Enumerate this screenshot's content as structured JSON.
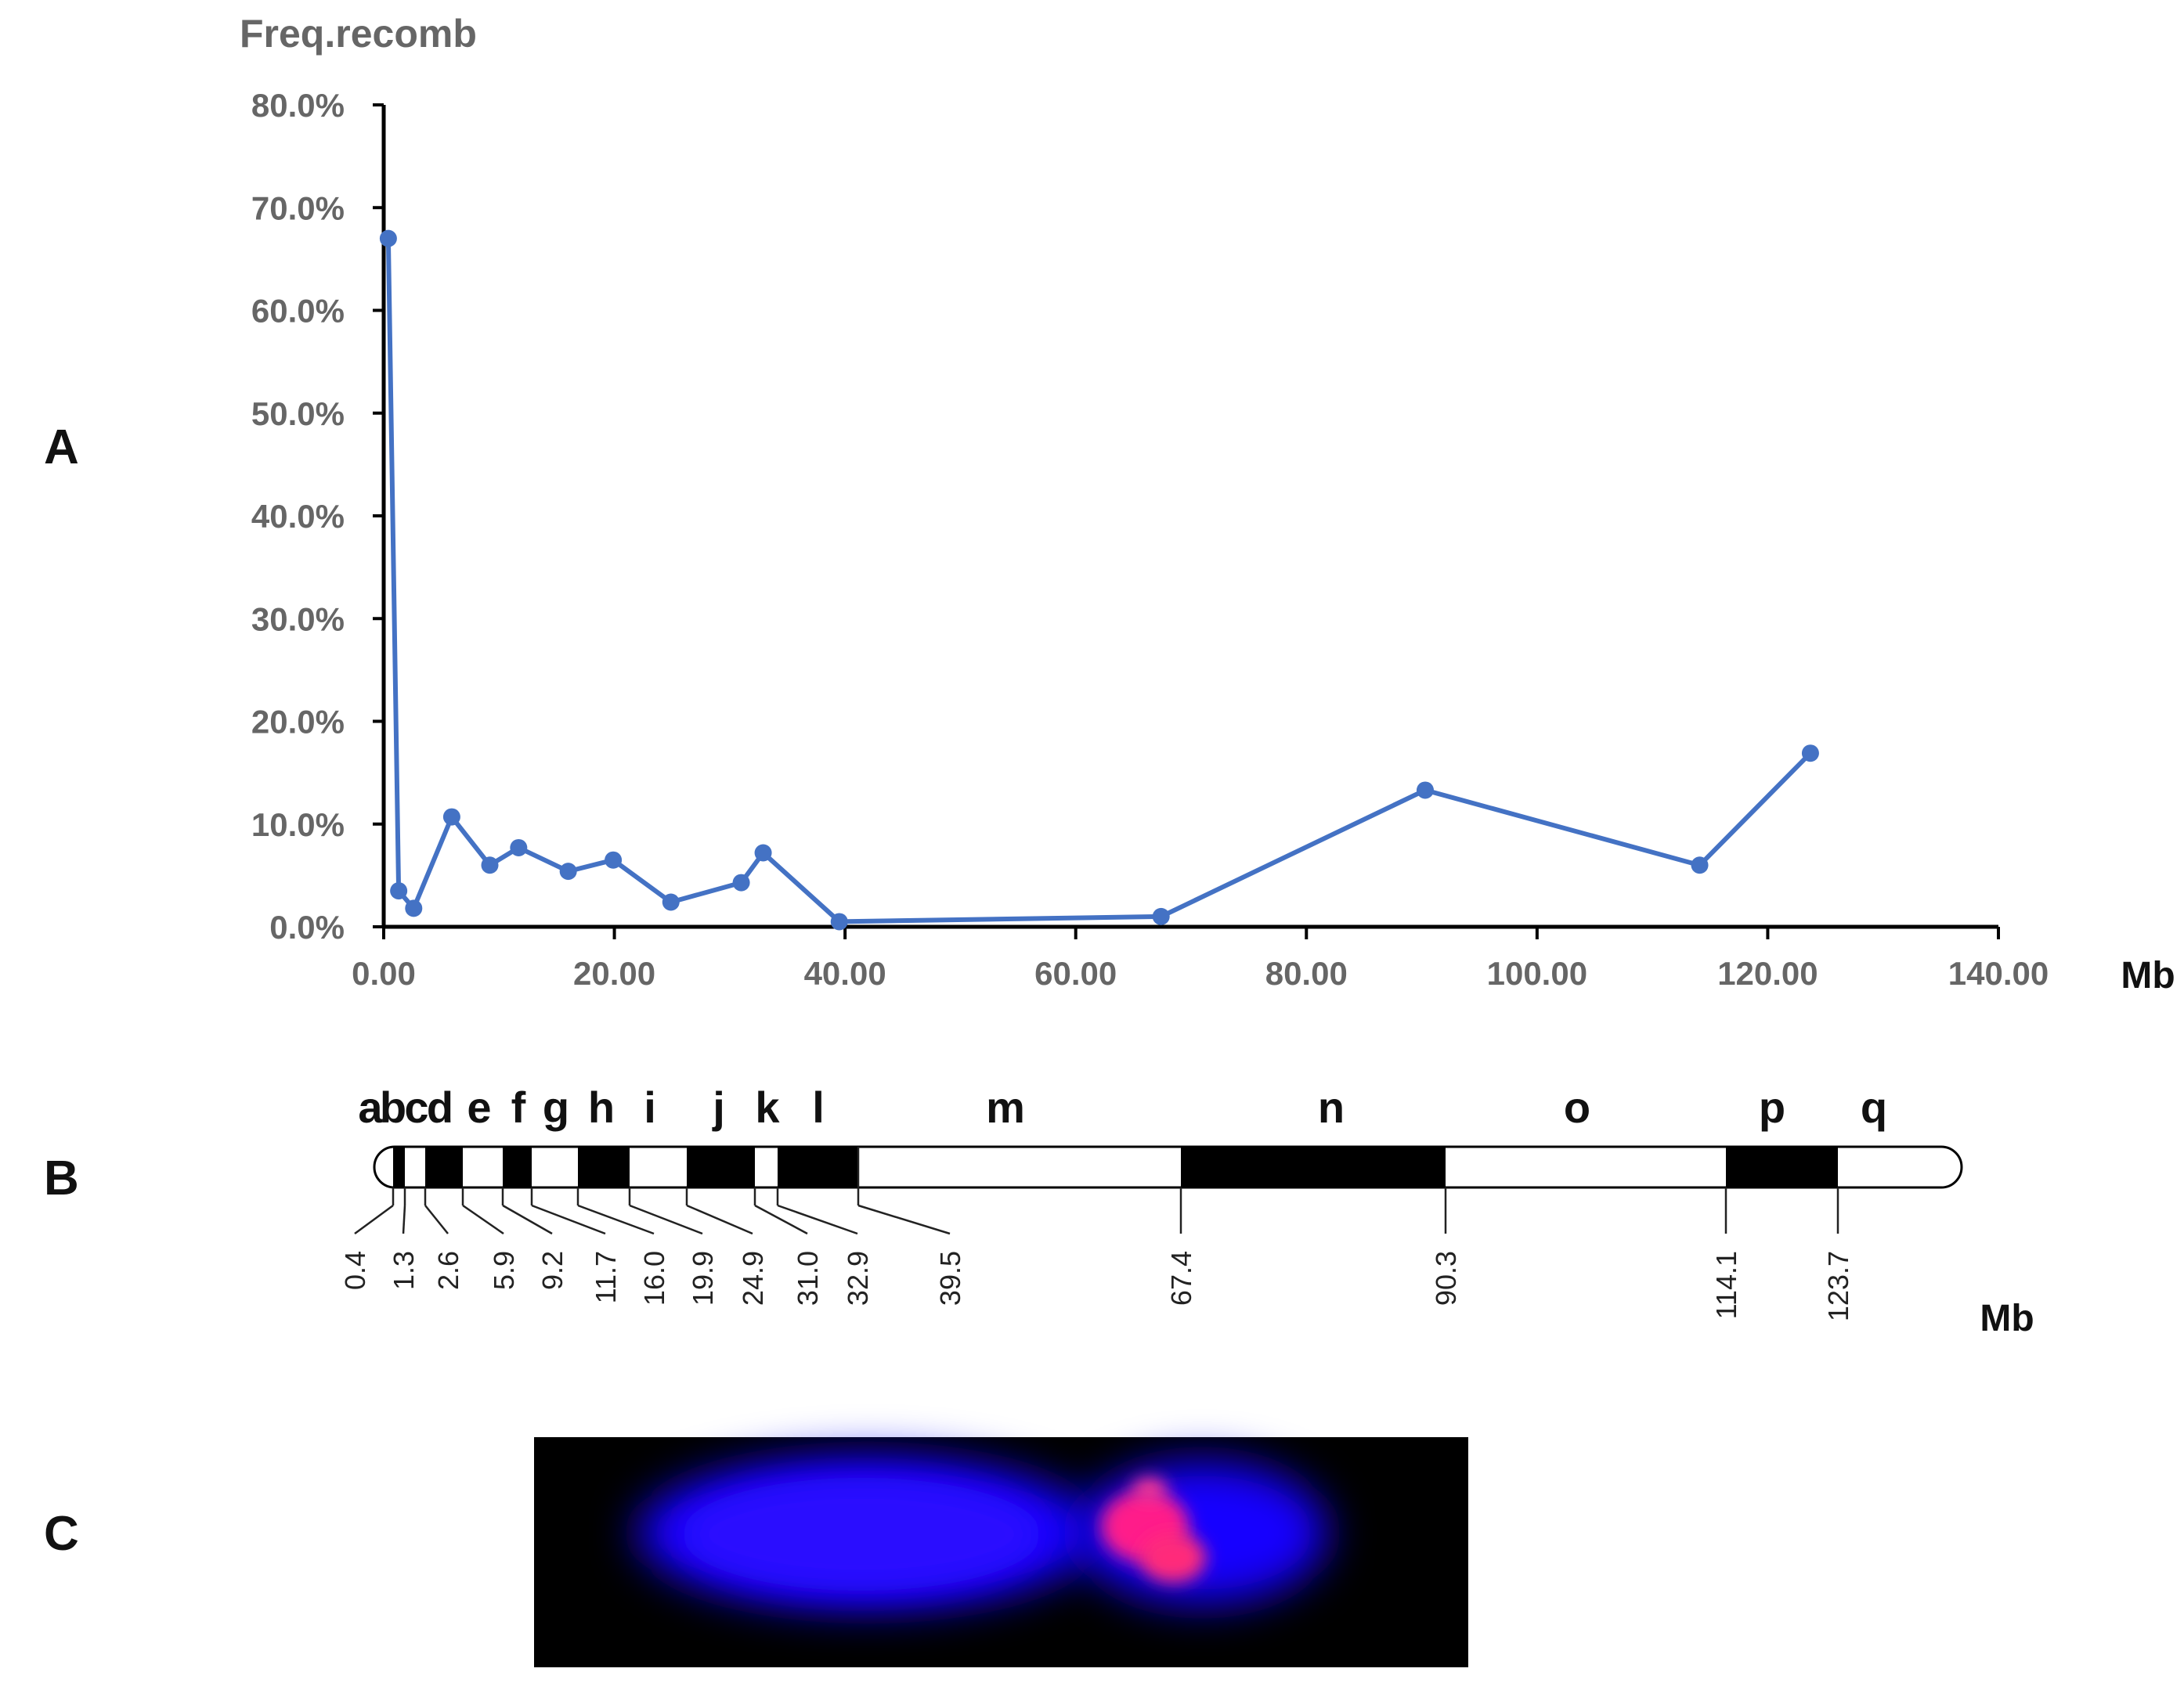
{
  "panels": {
    "a": "A",
    "b": "B",
    "c": "C"
  },
  "chart_data": {
    "type": "line",
    "ylabel": "Freq.recomb",
    "xlabel": "Mb",
    "xlim": [
      0,
      140
    ],
    "ylim": [
      0,
      80
    ],
    "x_ticks": [
      "0.00",
      "20.00",
      "40.00",
      "60.00",
      "80.00",
      "100.00",
      "120.00",
      "140.00"
    ],
    "y_ticks": [
      "0.0%",
      "10.0%",
      "20.0%",
      "30.0%",
      "40.0%",
      "50.0%",
      "60.0%",
      "70.0%",
      "80.0%"
    ],
    "color": "#4472C4",
    "x": [
      0.4,
      1.3,
      2.6,
      5.9,
      9.2,
      11.7,
      16.0,
      19.9,
      24.9,
      31.0,
      32.9,
      39.5,
      67.4,
      90.3,
      114.1,
      123.7
    ],
    "y": [
      67.0,
      3.5,
      1.8,
      10.7,
      6.0,
      7.7,
      5.4,
      6.5,
      2.4,
      4.3,
      7.2,
      0.5,
      1.0,
      13.3,
      6.0,
      16.9
    ]
  },
  "chromosome_map": {
    "unit": "Mb",
    "region_labels": [
      "a",
      "b",
      "c",
      "d",
      "e",
      "f",
      "g",
      "h",
      "i",
      "j",
      "k",
      "l",
      "m",
      "n",
      "o",
      "p",
      "q"
    ],
    "positions": [
      "0.4",
      "1.3",
      "2.6",
      "5.9",
      "9.2",
      "11.7",
      "16.0",
      "19.9",
      "24.9",
      "31.0",
      "32.9",
      "39.5",
      "67.4",
      "90.3",
      "114.1",
      "123.7"
    ]
  },
  "fish_image": {
    "background": "#000000",
    "chromosome_color": "#1a00ff",
    "signal_color": "#ff2a8c"
  }
}
